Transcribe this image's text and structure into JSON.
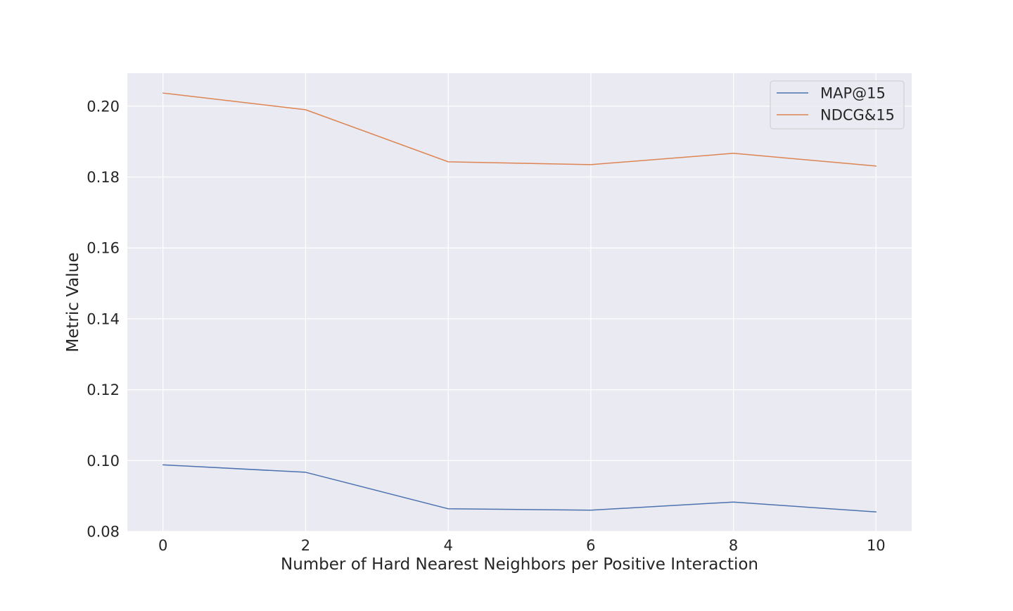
{
  "chart_data": {
    "type": "line",
    "title": "",
    "xlabel": "Number of Hard Nearest Neighbors per Positive Interaction",
    "ylabel": "Metric Value",
    "x": [
      0,
      2,
      4,
      6,
      8,
      10
    ],
    "xlim": [
      -0.5,
      10.5
    ],
    "ylim": [
      0.08,
      0.2093
    ],
    "xticks": [
      0,
      2,
      4,
      6,
      8,
      10
    ],
    "yticks": [
      0.08,
      0.1,
      0.12,
      0.14,
      0.16,
      0.18,
      0.2
    ],
    "ytick_labels": [
      "0.08",
      "0.10",
      "0.12",
      "0.14",
      "0.16",
      "0.18",
      "0.20"
    ],
    "grid": true,
    "legend_position": "top-right",
    "series": [
      {
        "name": "MAP@15",
        "color": "#4c72b0",
        "values": [
          0.0988,
          0.0967,
          0.0864,
          0.086,
          0.0883,
          0.0855
        ]
      },
      {
        "name": "NDCG&15",
        "color": "#dd8452",
        "values": [
          0.2037,
          0.199,
          0.1843,
          0.1835,
          0.1867,
          0.1831
        ]
      }
    ],
    "colors": {
      "plot_background": "#eaeaf2",
      "grid": "#ffffff",
      "text": "#262626"
    }
  }
}
